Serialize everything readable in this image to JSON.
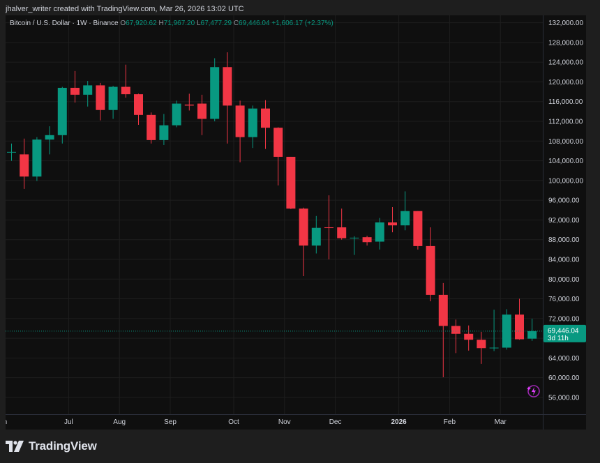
{
  "header": {
    "credit": "jhalver_writer created with TradingView.com, Mar 26, 2026 13:02 UTC"
  },
  "legend": {
    "symbol": "Bitcoin / U.S. Dollar · 1W · Binance",
    "o_label": "O",
    "o_value": "67,920.62",
    "h_label": "H",
    "h_value": "71,967.20",
    "l_label": "L",
    "l_value": "67,477.29",
    "c_label": "C",
    "c_value": "69,446.04",
    "change": "+1,606.17 (+2.37%)"
  },
  "footer": {
    "brand": "TradingView"
  },
  "colors": {
    "up": "#089981",
    "down": "#f23645",
    "background": "#0f0f0f",
    "grid": "#1e1e1e",
    "axis_text": "#d1d4dc",
    "frame": "#1e1e1e"
  },
  "icons": {
    "brand_logo": "tradingview-logo-icon",
    "badge": "sparkle-lightning-icon"
  },
  "chart_data": {
    "type": "candlestick",
    "title": "Bitcoin / U.S. Dollar · 1W · Binance",
    "ylim": [
      52600,
      133500
    ],
    "y_ticks": [
      56000,
      60000,
      64000,
      68000,
      72000,
      76000,
      80000,
      84000,
      88000,
      92000,
      96000,
      100000,
      104000,
      108000,
      112000,
      116000,
      120000,
      124000,
      128000,
      132000
    ],
    "y_tick_labels": [
      "56,000.00",
      "60,000.00",
      "64,000.00",
      "68,000.00",
      "72,000.00",
      "76,000.00",
      "80,000.00",
      "84,000.00",
      "88,000.00",
      "92,000.00",
      "96,000.00",
      "100,000.00",
      "104,000.00",
      "108,000.00",
      "112,000.00",
      "116,000.00",
      "120,000.00",
      "124,000.00",
      "128,000.00",
      "132,000.00"
    ],
    "x_ticks": [
      {
        "label": "n",
        "index": -0.5
      },
      {
        "label": "Jul",
        "index": 4.5
      },
      {
        "label": "Aug",
        "index": 8.5
      },
      {
        "label": "Sep",
        "index": 12.5
      },
      {
        "label": "Oct",
        "index": 17.5
      },
      {
        "label": "Nov",
        "index": 21.5
      },
      {
        "label": "Dec",
        "index": 25.5
      },
      {
        "label": "2026",
        "index": 30.5,
        "bold": true
      },
      {
        "label": "Feb",
        "index": 34.5
      },
      {
        "label": "Mar",
        "index": 38.5
      }
    ],
    "grid": true,
    "last_price": {
      "value": 69446.04,
      "label": "69,446.04",
      "countdown": "3d 11h"
    },
    "candles": [
      {
        "o": 105800,
        "h": 107500,
        "l": 104000,
        "c": 105800
      },
      {
        "o": 105300,
        "h": 108500,
        "l": 98300,
        "c": 100800
      },
      {
        "o": 100800,
        "h": 108800,
        "l": 99900,
        "c": 108300
      },
      {
        "o": 108300,
        "h": 111000,
        "l": 105300,
        "c": 109200
      },
      {
        "o": 109200,
        "h": 119000,
        "l": 107500,
        "c": 118800
      },
      {
        "o": 118800,
        "h": 122200,
        "l": 115800,
        "c": 117400
      },
      {
        "o": 117400,
        "h": 120200,
        "l": 115000,
        "c": 119300
      },
      {
        "o": 119300,
        "h": 119800,
        "l": 112200,
        "c": 114300
      },
      {
        "o": 114300,
        "h": 119200,
        "l": 112500,
        "c": 119000
      },
      {
        "o": 119000,
        "h": 123500,
        "l": 116800,
        "c": 117500
      },
      {
        "o": 117500,
        "h": 117600,
        "l": 111300,
        "c": 113300
      },
      {
        "o": 113300,
        "h": 113800,
        "l": 107500,
        "c": 108200
      },
      {
        "o": 108200,
        "h": 113500,
        "l": 107200,
        "c": 111200
      },
      {
        "o": 111200,
        "h": 116200,
        "l": 110800,
        "c": 115600
      },
      {
        "o": 115400,
        "h": 117600,
        "l": 114200,
        "c": 115200
      },
      {
        "o": 115600,
        "h": 117400,
        "l": 109200,
        "c": 112500
      },
      {
        "o": 112500,
        "h": 124800,
        "l": 112000,
        "c": 123000
      },
      {
        "o": 123000,
        "h": 126000,
        "l": 107500,
        "c": 115200
      },
      {
        "o": 115200,
        "h": 116200,
        "l": 103700,
        "c": 108800
      },
      {
        "o": 108800,
        "h": 115200,
        "l": 106600,
        "c": 114600
      },
      {
        "o": 114600,
        "h": 116300,
        "l": 106400,
        "c": 110700
      },
      {
        "o": 110700,
        "h": 110800,
        "l": 99000,
        "c": 104800
      },
      {
        "o": 104800,
        "h": 104800,
        "l": 94200,
        "c": 94300
      },
      {
        "o": 94300,
        "h": 94500,
        "l": 80600,
        "c": 86800
      },
      {
        "o": 86800,
        "h": 92800,
        "l": 85200,
        "c": 90400
      },
      {
        "o": 90500,
        "h": 97000,
        "l": 84000,
        "c": 90400
      },
      {
        "o": 90500,
        "h": 94300,
        "l": 88000,
        "c": 88300
      },
      {
        "o": 88400,
        "h": 88700,
        "l": 84900,
        "c": 88400
      },
      {
        "o": 88500,
        "h": 88800,
        "l": 86800,
        "c": 87500
      },
      {
        "o": 87600,
        "h": 92400,
        "l": 86000,
        "c": 91500
      },
      {
        "o": 91500,
        "h": 94600,
        "l": 89500,
        "c": 90900
      },
      {
        "o": 90900,
        "h": 97800,
        "l": 89900,
        "c": 93800
      },
      {
        "o": 93800,
        "h": 93800,
        "l": 86000,
        "c": 86700
      },
      {
        "o": 86700,
        "h": 90500,
        "l": 75500,
        "c": 76800
      },
      {
        "o": 76800,
        "h": 79200,
        "l": 60100,
        "c": 70500
      },
      {
        "o": 70500,
        "h": 71800,
        "l": 65000,
        "c": 68900
      },
      {
        "o": 68900,
        "h": 70600,
        "l": 65500,
        "c": 67700
      },
      {
        "o": 67700,
        "h": 69300,
        "l": 62800,
        "c": 66000
      },
      {
        "o": 66000,
        "h": 73800,
        "l": 65400,
        "c": 66100
      },
      {
        "o": 66100,
        "h": 73900,
        "l": 65700,
        "c": 72800
      },
      {
        "o": 72800,
        "h": 76000,
        "l": 67700,
        "c": 67800
      },
      {
        "o": 67920.62,
        "h": 71967.2,
        "l": 67477.29,
        "c": 69446.04
      }
    ]
  }
}
